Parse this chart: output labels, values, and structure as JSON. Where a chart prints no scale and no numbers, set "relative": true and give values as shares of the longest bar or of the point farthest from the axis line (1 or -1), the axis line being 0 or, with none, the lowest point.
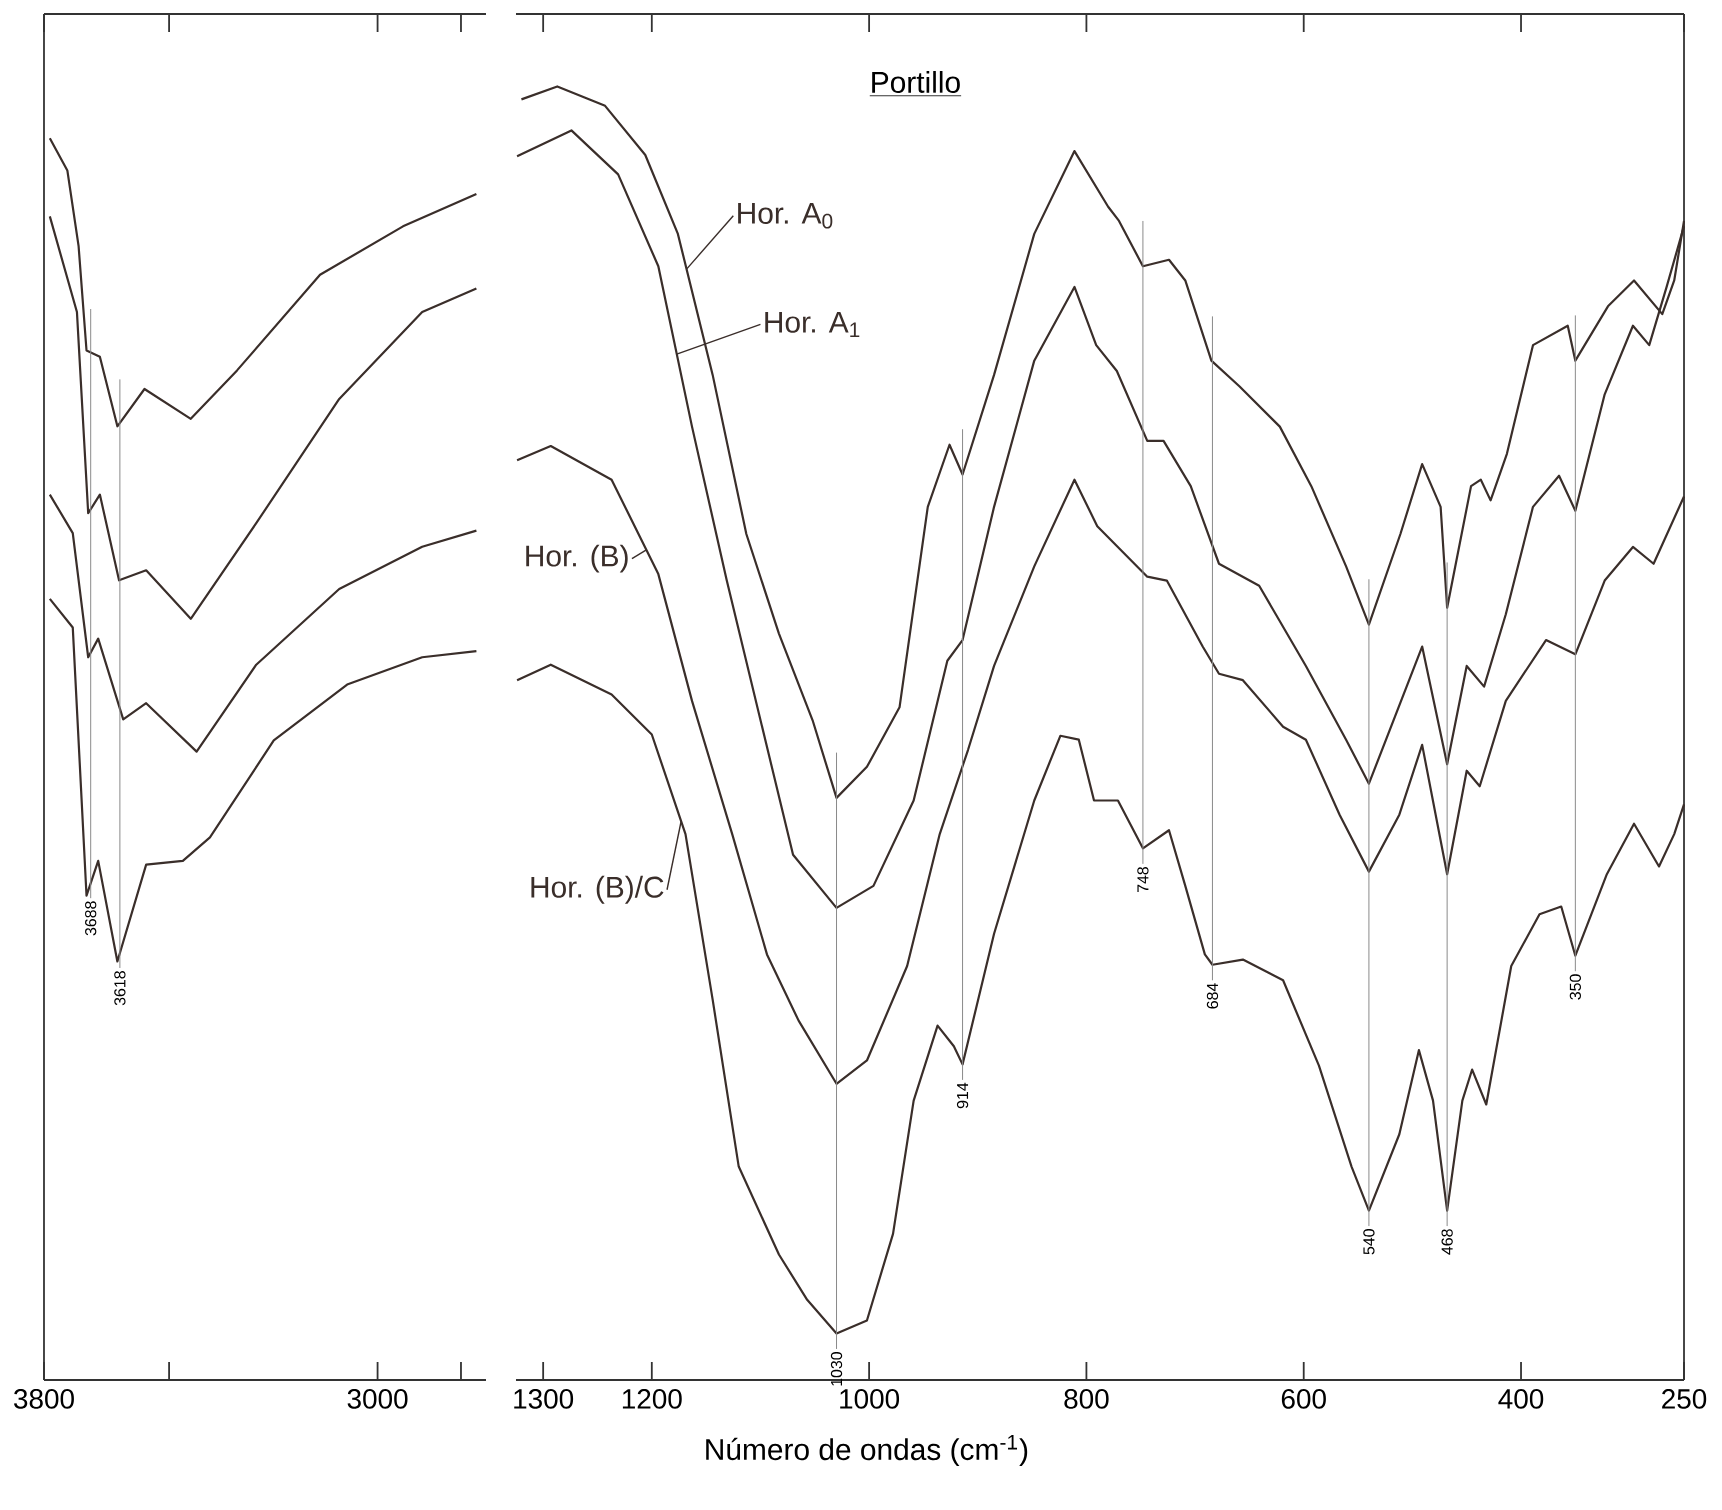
{
  "chart_data": [
    {
      "type": "line",
      "relative": true,
      "xlim": [
        3800,
        2740
      ],
      "xticks": [
        3800,
        {
          "value": 3500,
          "label": null
        },
        3000,
        {
          "value": 2800,
          "label": null
        }
      ],
      "series": [
        {
          "color": "#3a2e2a",
          "x": [
            3786,
            3744,
            3717,
            3698,
            3666,
            3624,
            3559,
            3448,
            3337,
            3138,
            2939,
            2763
          ],
          "values": [
            1.0,
            0.974,
            0.913,
            0.829,
            0.824,
            0.768,
            0.798,
            0.774,
            0.813,
            0.89,
            0.929,
            0.955
          ]
        },
        {
          "color": "#3a2e2a",
          "x": [
            3786,
            3721,
            3694,
            3666,
            3620,
            3555,
            3448,
            3291,
            3092,
            2893,
            2763
          ],
          "values": [
            0.937,
            0.86,
            0.698,
            0.713,
            0.644,
            0.652,
            0.613,
            0.69,
            0.79,
            0.86,
            0.879
          ]
        },
        {
          "color": "#3a2e2a",
          "x": [
            3786,
            3731,
            3694,
            3670,
            3610,
            3555,
            3434,
            3291,
            3092,
            2893,
            2763
          ],
          "values": [
            0.713,
            0.682,
            0.582,
            0.597,
            0.532,
            0.545,
            0.506,
            0.576,
            0.637,
            0.671,
            0.684
          ]
        },
        {
          "color": "#3a2e2a",
          "x": [
            3786,
            3731,
            3698,
            3670,
            3624,
            3555,
            3467,
            3402,
            3249,
            3073,
            2893,
            2763
          ],
          "values": [
            0.629,
            0.606,
            0.39,
            0.418,
            0.337,
            0.415,
            0.418,
            0.437,
            0.515,
            0.56,
            0.582,
            0.587
          ]
        }
      ],
      "ref_lines": [
        {
          "axis": "x",
          "value": 3688,
          "label": "3688",
          "color": "#8a8a8a"
        },
        {
          "axis": "x",
          "value": 3618,
          "label": "3618",
          "color": "#8a8a8a"
        }
      ]
    },
    {
      "type": "line",
      "relative": true,
      "title": "Portillo",
      "xlabel": "Número de ondas (cm$^{-1}$)",
      "xlim": [
        1325,
        250
      ],
      "xticks": [
        1300,
        1200,
        1000,
        800,
        600,
        400,
        250
      ],
      "series": [
        {
          "name": "Hor. A$_{0}$",
          "color": "#3a2e2a",
          "x": [
            1320,
            1287,
            1243,
            1206,
            1176,
            1144,
            1113,
            1083,
            1052,
            1030,
            1002,
            972,
            946,
            926,
            914,
            885,
            848,
            811,
            780,
            770,
            748,
            724,
            709,
            685,
            659,
            622,
            593,
            561,
            540,
            511,
            491,
            474,
            468,
            446,
            437,
            428,
            413,
            389,
            357,
            350,
            320,
            296,
            270,
            259,
            250
          ],
          "values": [
            0.99,
            1.0,
            0.985,
            0.947,
            0.886,
            0.777,
            0.654,
            0.577,
            0.51,
            0.45,
            0.474,
            0.52,
            0.675,
            0.723,
            0.7,
            0.777,
            0.886,
            0.95,
            0.907,
            0.896,
            0.861,
            0.866,
            0.85,
            0.788,
            0.768,
            0.737,
            0.691,
            0.629,
            0.584,
            0.654,
            0.708,
            0.675,
            0.597,
            0.691,
            0.696,
            0.68,
            0.716,
            0.8,
            0.815,
            0.788,
            0.83,
            0.85,
            0.824,
            0.85,
            0.896
          ]
        },
        {
          "name": "Hor. A$_{1}$",
          "color": "#3a2e2a",
          "x": [
            1324,
            1274,
            1231,
            1194,
            1163,
            1131,
            1070,
            1030,
            996,
            959,
            928,
            914,
            885,
            848,
            811,
            791,
            772,
            744,
            729,
            704,
            678,
            641,
            598,
            561,
            540,
            491,
            468,
            450,
            434,
            414,
            389,
            365,
            350,
            323,
            297,
            282,
            266,
            250
          ],
          "values": [
            0.946,
            0.966,
            0.932,
            0.861,
            0.737,
            0.618,
            0.406,
            0.365,
            0.382,
            0.448,
            0.556,
            0.572,
            0.675,
            0.788,
            0.845,
            0.8,
            0.78,
            0.726,
            0.726,
            0.691,
            0.631,
            0.614,
            0.552,
            0.495,
            0.461,
            0.567,
            0.476,
            0.552,
            0.536,
            0.592,
            0.675,
            0.699,
            0.672,
            0.762,
            0.815,
            0.8,
            0.845,
            0.892
          ]
        },
        {
          "name": "Hor. (B)",
          "color": "#3a2e2a",
          "x": [
            1324,
            1293,
            1237,
            1194,
            1163,
            1126,
            1094,
            1065,
            1030,
            1002,
            965,
            935,
            909,
            885,
            848,
            811,
            790,
            744,
            726,
            693,
            678,
            656,
            619,
            598,
            567,
            540,
            512,
            491,
            468,
            450,
            438,
            414,
            377,
            350,
            323,
            297,
            278,
            250
          ],
          "values": [
            0.711,
            0.722,
            0.696,
            0.623,
            0.525,
            0.422,
            0.329,
            0.278,
            0.229,
            0.247,
            0.32,
            0.422,
            0.487,
            0.552,
            0.629,
            0.696,
            0.66,
            0.621,
            0.618,
            0.567,
            0.546,
            0.541,
            0.505,
            0.495,
            0.437,
            0.393,
            0.437,
            0.491,
            0.391,
            0.471,
            0.459,
            0.525,
            0.572,
            0.561,
            0.618,
            0.644,
            0.631,
            0.683
          ]
        },
        {
          "name": "Hor. (B)/C",
          "color": "#3a2e2a",
          "x": [
            1324,
            1293,
            1237,
            1200,
            1169,
            1144,
            1120,
            1083,
            1057,
            1030,
            1002,
            978,
            959,
            937,
            922,
            914,
            885,
            848,
            824,
            807,
            793,
            771,
            748,
            724,
            709,
            691,
            684,
            656,
            619,
            586,
            556,
            540,
            512,
            494,
            481,
            468,
            454,
            445,
            432,
            409,
            383,
            363,
            350,
            321,
            296,
            273,
            259,
            250
          ],
          "values": [
            0.541,
            0.553,
            0.53,
            0.499,
            0.422,
            0.294,
            0.165,
            0.097,
            0.062,
            0.036,
            0.046,
            0.113,
            0.216,
            0.274,
            0.258,
            0.244,
            0.345,
            0.448,
            0.498,
            0.495,
            0.448,
            0.448,
            0.411,
            0.425,
            0.382,
            0.329,
            0.321,
            0.325,
            0.309,
            0.243,
            0.165,
            0.131,
            0.19,
            0.255,
            0.216,
            0.131,
            0.216,
            0.24,
            0.213,
            0.32,
            0.36,
            0.366,
            0.328,
            0.391,
            0.43,
            0.397,
            0.422,
            0.445
          ]
        }
      ],
      "ref_lines": [
        {
          "axis": "x",
          "value": 1030,
          "label": "1030",
          "color": "#8a8a8a"
        },
        {
          "axis": "x",
          "value": 914,
          "label": "914",
          "color": "#8a8a8a"
        },
        {
          "axis": "x",
          "value": 748,
          "label": "748",
          "color": "#8a8a8a"
        },
        {
          "axis": "x",
          "value": 684,
          "label": "684",
          "color": "#8a8a8a"
        },
        {
          "axis": "x",
          "value": 540,
          "label": "540",
          "color": "#8a8a8a"
        },
        {
          "axis": "x",
          "value": 468,
          "label": "468",
          "color": "#8a8a8a"
        },
        {
          "axis": "x",
          "value": 350,
          "label": "350",
          "color": "#8a8a8a"
        }
      ]
    }
  ]
}
